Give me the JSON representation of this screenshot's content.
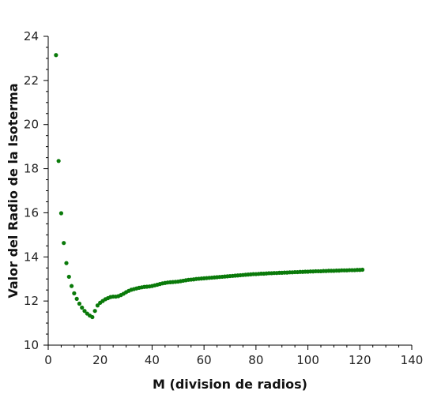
{
  "chart_data": {
    "type": "scatter",
    "title": "",
    "xlabel": "M (division de radios)",
    "ylabel": "Valor del Radio de la Isoterma",
    "xlim": [
      0,
      140
    ],
    "ylim": [
      10,
      24
    ],
    "x_major_ticks": [
      0,
      20,
      40,
      60,
      80,
      100,
      120,
      140
    ],
    "y_major_ticks": [
      10,
      12,
      14,
      16,
      18,
      20,
      22,
      24
    ],
    "grid": false,
    "legend": "none",
    "marker_color": "#0a7a0a",
    "series": [
      {
        "x": [
          3,
          4,
          5,
          6,
          7,
          8,
          9,
          10,
          11,
          12,
          13,
          14,
          15,
          16,
          17,
          18,
          19,
          20,
          21,
          22,
          23,
          24,
          25,
          26,
          27,
          28,
          29,
          30,
          31,
          32,
          33,
          34,
          35,
          36,
          37,
          38,
          39,
          40,
          41,
          42,
          43,
          44,
          45,
          46,
          47,
          48,
          49,
          50,
          51,
          52,
          53,
          54,
          55,
          56,
          57,
          58,
          59,
          60,
          61,
          62,
          63,
          64,
          65,
          66,
          67,
          68,
          69,
          70,
          71,
          72,
          73,
          74,
          75,
          76,
          77,
          78,
          79,
          80,
          81,
          82,
          83,
          84,
          85,
          86,
          87,
          88,
          89,
          90,
          91,
          92,
          93,
          94,
          95,
          96,
          97,
          98,
          99,
          100,
          101,
          102,
          103,
          104,
          105,
          106,
          107,
          108,
          109,
          110,
          111,
          112,
          113,
          114,
          115,
          116,
          117,
          118,
          119,
          120,
          121
        ],
        "y": [
          23.15,
          18.35,
          15.98,
          14.63,
          13.72,
          13.1,
          12.68,
          12.35,
          12.1,
          11.88,
          11.7,
          11.55,
          11.43,
          11.34,
          11.27,
          11.55,
          11.8,
          11.92,
          12.0,
          12.08,
          12.13,
          12.18,
          12.2,
          12.2,
          12.22,
          12.27,
          12.33,
          12.4,
          12.46,
          12.51,
          12.54,
          12.57,
          12.6,
          12.62,
          12.64,
          12.65,
          12.66,
          12.68,
          12.71,
          12.74,
          12.77,
          12.8,
          12.82,
          12.84,
          12.85,
          12.86,
          12.87,
          12.88,
          12.9,
          12.92,
          12.94,
          12.96,
          12.97,
          12.98,
          13.0,
          13.01,
          13.02,
          13.03,
          13.04,
          13.05,
          13.06,
          13.07,
          13.08,
          13.09,
          13.1,
          13.11,
          13.12,
          13.13,
          13.14,
          13.15,
          13.16,
          13.17,
          13.18,
          13.19,
          13.2,
          13.21,
          13.22,
          13.22,
          13.23,
          13.24,
          13.24,
          13.25,
          13.26,
          13.26,
          13.27,
          13.27,
          13.28,
          13.28,
          13.29,
          13.29,
          13.3,
          13.3,
          13.31,
          13.31,
          13.32,
          13.32,
          13.33,
          13.33,
          13.34,
          13.34,
          13.35,
          13.35,
          13.35,
          13.36,
          13.36,
          13.37,
          13.37,
          13.37,
          13.38,
          13.38,
          13.39,
          13.39,
          13.39,
          13.4,
          13.4,
          13.4,
          13.41,
          13.41,
          13.42
        ]
      }
    ]
  }
}
